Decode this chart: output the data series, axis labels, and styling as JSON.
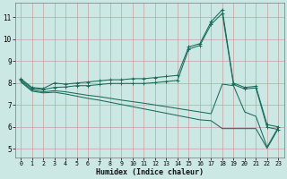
{
  "xlabel": "Humidex (Indice chaleur)",
  "background_color": "#cce8e4",
  "grid_color": "#c8a0a0",
  "line_color": "#1a6b5a",
  "xlim": [
    -0.5,
    23.5
  ],
  "ylim": [
    4.6,
    11.65
  ],
  "xticks": [
    0,
    1,
    2,
    3,
    4,
    5,
    6,
    7,
    8,
    9,
    10,
    11,
    12,
    13,
    14,
    15,
    16,
    17,
    18,
    19,
    20,
    21,
    22,
    23
  ],
  "yticks": [
    5,
    6,
    7,
    8,
    9,
    10,
    11
  ],
  "line1_y": [
    8.2,
    7.8,
    7.75,
    8.0,
    7.95,
    8.0,
    8.05,
    8.1,
    8.15,
    8.15,
    8.2,
    8.2,
    8.25,
    8.3,
    8.35,
    9.65,
    9.8,
    10.8,
    11.35,
    8.0,
    7.8,
    7.85,
    6.1,
    6.0
  ],
  "line2_y": [
    8.15,
    7.75,
    7.7,
    7.8,
    7.82,
    7.88,
    7.88,
    7.93,
    7.98,
    7.98,
    7.98,
    7.98,
    8.02,
    8.07,
    8.12,
    9.55,
    9.72,
    10.68,
    11.18,
    7.93,
    7.73,
    7.78,
    5.98,
    5.88
  ],
  "line3_y": [
    8.1,
    7.68,
    7.6,
    7.65,
    7.6,
    7.52,
    7.44,
    7.38,
    7.3,
    7.22,
    7.15,
    7.08,
    7.0,
    6.92,
    6.84,
    6.76,
    6.68,
    6.6,
    7.95,
    7.88,
    6.68,
    6.48,
    5.08,
    5.98
  ],
  "line4_y": [
    8.05,
    7.63,
    7.55,
    7.58,
    7.5,
    7.4,
    7.3,
    7.22,
    7.12,
    7.02,
    6.92,
    6.82,
    6.72,
    6.62,
    6.52,
    6.42,
    6.32,
    6.28,
    5.92,
    5.92,
    5.92,
    5.92,
    5.02,
    5.92
  ]
}
